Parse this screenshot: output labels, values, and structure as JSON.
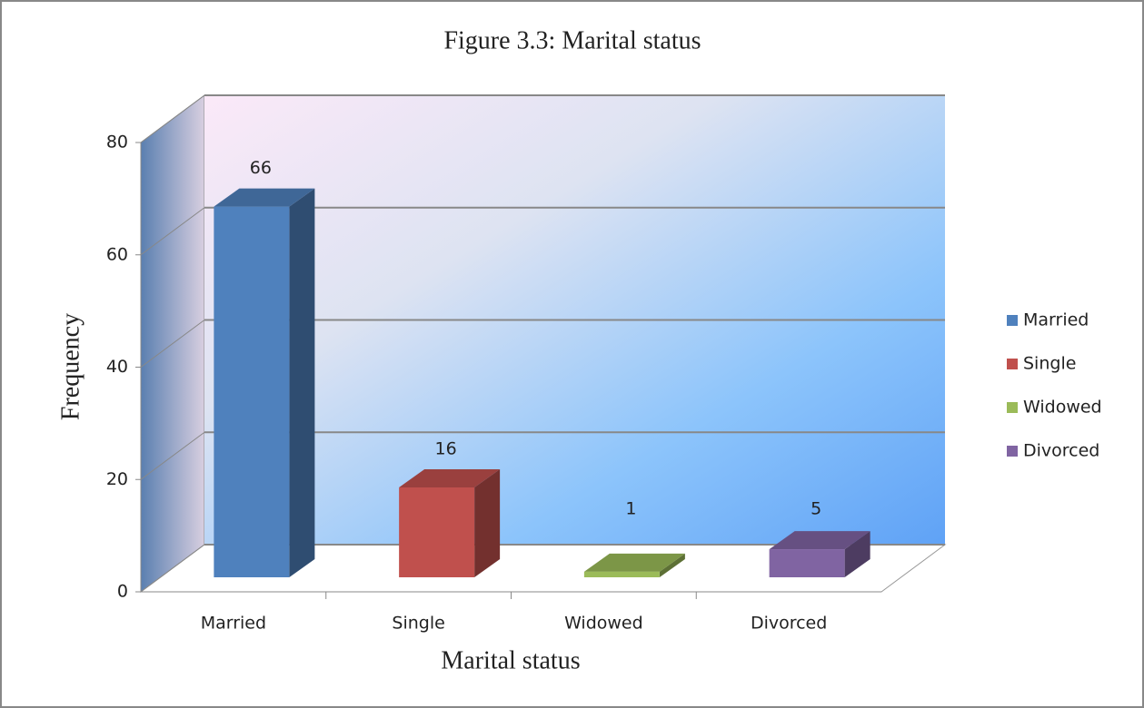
{
  "chart_data": {
    "type": "bar3d",
    "title": "Figure 3.3: Marital status",
    "x_label": "Marital status",
    "y_label": "Frequency",
    "categories": [
      "Married",
      "Single",
      "Widowed",
      "Divorced"
    ],
    "values": [
      66,
      16,
      1,
      5
    ],
    "colors": [
      "#4f81bd",
      "#c0504d",
      "#9bbb59",
      "#8064a2"
    ],
    "ylim": [
      0,
      80
    ],
    "yticks": [
      0,
      20,
      40,
      60,
      80
    ],
    "grid": true,
    "legend": "right"
  }
}
